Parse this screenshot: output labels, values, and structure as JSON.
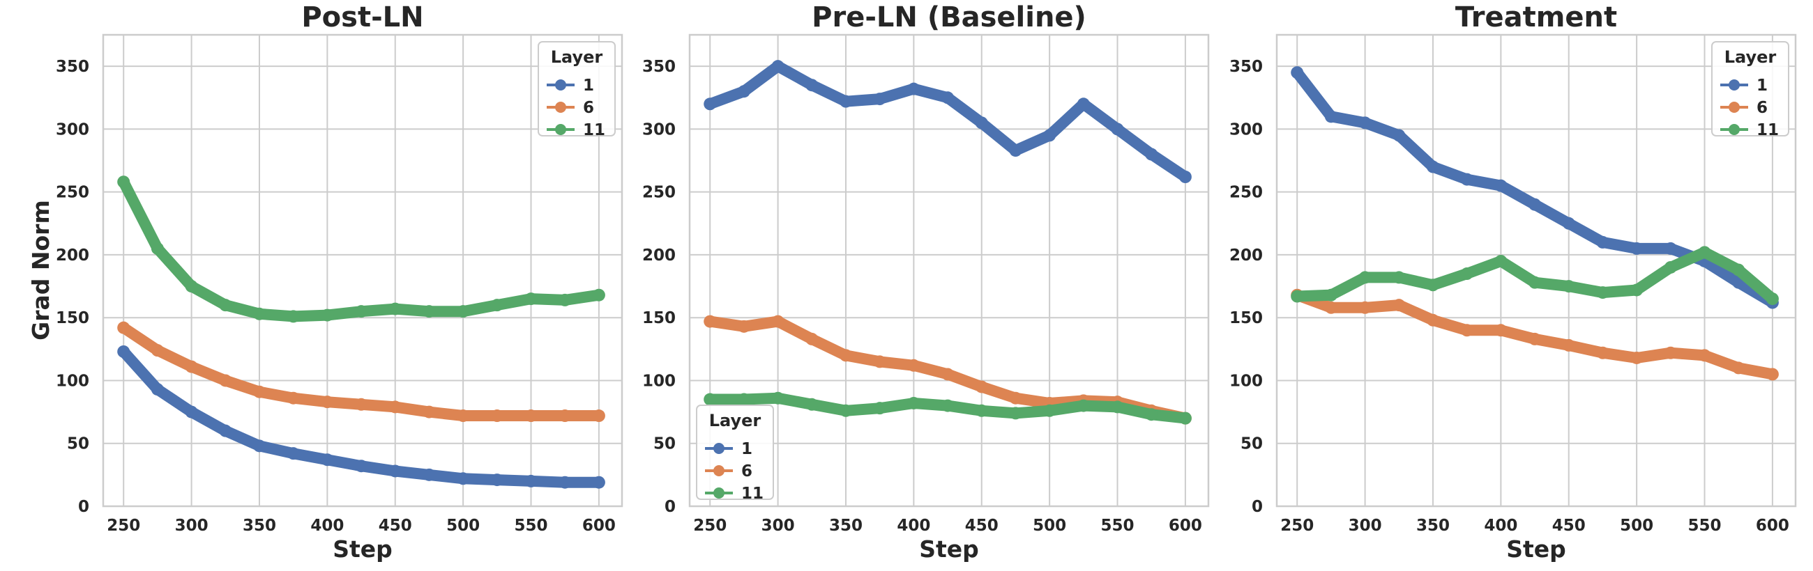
{
  "figure": {
    "ylabel": "Grad Norm"
  },
  "chart_data": [
    {
      "type": "line",
      "title": "Post-LN",
      "xlabel": "Step",
      "ylabel": "Grad Norm",
      "xlim": [
        235,
        617
      ],
      "ylim": [
        0,
        375
      ],
      "xticks": [
        250,
        300,
        350,
        400,
        450,
        500,
        550,
        600
      ],
      "yticks": [
        0,
        50,
        100,
        150,
        200,
        250,
        300,
        350
      ],
      "grid": true,
      "legend": {
        "title": "Layer",
        "position": "top-right"
      },
      "x": [
        250,
        275,
        300,
        325,
        350,
        375,
        400,
        425,
        450,
        475,
        500,
        525,
        550,
        575,
        600
      ],
      "series": [
        {
          "name": "1",
          "color": "#4c72b0",
          "values": [
            123,
            93,
            75,
            60,
            48,
            42,
            37,
            32,
            28,
            25,
            22,
            21,
            20,
            19,
            19
          ]
        },
        {
          "name": "6",
          "color": "#dd8452",
          "values": [
            142,
            124,
            111,
            100,
            91,
            86,
            83,
            81,
            79,
            75,
            72,
            72,
            72,
            72,
            72
          ]
        },
        {
          "name": "11",
          "color": "#55a868",
          "values": [
            258,
            205,
            175,
            160,
            153,
            151,
            152,
            155,
            157,
            155,
            155,
            160,
            165,
            164,
            168
          ]
        }
      ]
    },
    {
      "type": "line",
      "title": "Pre-LN (Baseline)",
      "xlabel": "Step",
      "ylabel": "",
      "xlim": [
        235,
        617
      ],
      "ylim": [
        0,
        375
      ],
      "xticks": [
        250,
        300,
        350,
        400,
        450,
        500,
        550,
        600
      ],
      "yticks": [
        0,
        50,
        100,
        150,
        200,
        250,
        300,
        350
      ],
      "grid": true,
      "legend": {
        "title": "Layer",
        "position": "bottom-left"
      },
      "x": [
        250,
        275,
        300,
        325,
        350,
        375,
        400,
        425,
        450,
        475,
        500,
        525,
        550,
        575,
        600
      ],
      "series": [
        {
          "name": "1",
          "color": "#4c72b0",
          "values": [
            320,
            330,
            350,
            335,
            322,
            324,
            332,
            325,
            305,
            283,
            295,
            320,
            300,
            280,
            262
          ]
        },
        {
          "name": "6",
          "color": "#dd8452",
          "values": [
            147,
            143,
            147,
            133,
            120,
            115,
            112,
            105,
            95,
            86,
            82,
            84,
            83,
            76,
            70
          ]
        },
        {
          "name": "11",
          "color": "#55a868",
          "values": [
            85,
            85,
            86,
            81,
            76,
            78,
            82,
            80,
            76,
            74,
            76,
            80,
            79,
            73,
            70
          ]
        }
      ]
    },
    {
      "type": "line",
      "title": "Treatment",
      "xlabel": "Step",
      "ylabel": "",
      "xlim": [
        235,
        617
      ],
      "ylim": [
        0,
        375
      ],
      "xticks": [
        250,
        300,
        350,
        400,
        450,
        500,
        550,
        600
      ],
      "yticks": [
        0,
        50,
        100,
        150,
        200,
        250,
        300,
        350
      ],
      "grid": true,
      "legend": {
        "title": "Layer",
        "position": "top-right"
      },
      "x": [
        250,
        275,
        300,
        325,
        350,
        375,
        400,
        425,
        450,
        475,
        500,
        525,
        550,
        575,
        600
      ],
      "series": [
        {
          "name": "1",
          "color": "#4c72b0",
          "values": [
            345,
            310,
            305,
            295,
            270,
            260,
            255,
            240,
            225,
            210,
            205,
            205,
            195,
            178,
            162
          ]
        },
        {
          "name": "6",
          "color": "#dd8452",
          "values": [
            168,
            158,
            158,
            160,
            148,
            140,
            140,
            133,
            128,
            122,
            118,
            122,
            120,
            110,
            105
          ]
        },
        {
          "name": "11",
          "color": "#55a868",
          "values": [
            167,
            168,
            182,
            182,
            176,
            185,
            195,
            178,
            175,
            170,
            172,
            190,
            202,
            188,
            165
          ]
        }
      ]
    }
  ]
}
